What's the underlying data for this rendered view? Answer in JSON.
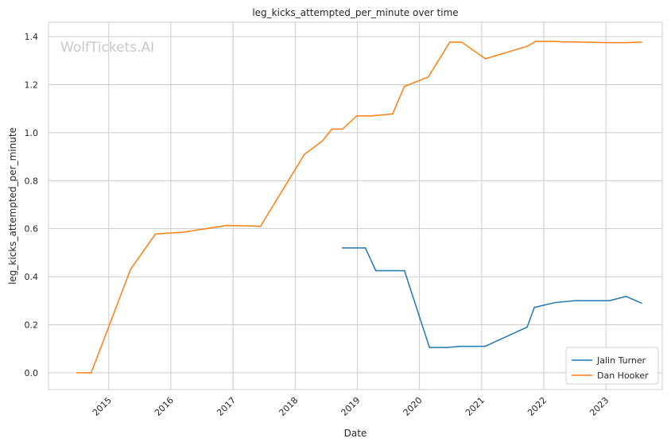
{
  "chart_data": {
    "type": "line",
    "title": "leg_kicks_attempted_per_minute over time",
    "xlabel": "Date",
    "ylabel": "leg_kicks_attempted_per_minute",
    "watermark": "WolfTickets.AI",
    "x_type": "date",
    "xlim": [
      "2014-01-12",
      "2023-11-28"
    ],
    "ylim": [
      -0.07,
      1.46
    ],
    "yticks": [
      0.0,
      0.2,
      0.4,
      0.6,
      0.8,
      1.0,
      1.2,
      1.4
    ],
    "ytick_labels": [
      "0.0",
      "0.2",
      "0.4",
      "0.6",
      "0.8",
      "1.0",
      "1.2",
      "1.4"
    ],
    "xticks": [
      "2015-01-01",
      "2016-01-01",
      "2017-01-01",
      "2018-01-01",
      "2019-01-01",
      "2020-01-01",
      "2021-01-01",
      "2022-01-01",
      "2023-01-01"
    ],
    "xtick_labels": [
      "2015",
      "2016",
      "2017",
      "2018",
      "2019",
      "2020",
      "2021",
      "2022",
      "2023"
    ],
    "grid": true,
    "legend_position": "bottom-right",
    "series": [
      {
        "name": "Jalin Turner",
        "color": "#1f77b4",
        "x": [
          "2018-10-06",
          "2019-02-17",
          "2019-04-20",
          "2019-10-05",
          "2020-02-29",
          "2020-06-06",
          "2020-08-29",
          "2021-01-20",
          "2021-09-25",
          "2021-11-06",
          "2022-03-05",
          "2022-07-01",
          "2023-01-21",
          "2023-04-29",
          "2023-07-29"
        ],
        "y": [
          0.52,
          0.52,
          0.425,
          0.425,
          0.105,
          0.105,
          0.11,
          0.11,
          0.19,
          0.272,
          0.292,
          0.3,
          0.3,
          0.318,
          0.29
        ]
      },
      {
        "name": "Dan Hooker",
        "color": "#ff7f0e",
        "x": [
          "2014-06-28",
          "2014-09-20",
          "2015-05-10",
          "2015-10-03",
          "2016-03-20",
          "2016-11-27",
          "2017-06-11",
          "2018-02-24",
          "2018-06-09",
          "2018-08-04",
          "2018-10-06",
          "2018-12-29",
          "2019-03-23",
          "2019-07-27",
          "2019-10-05",
          "2020-02-22",
          "2020-06-27",
          "2020-09-05",
          "2021-01-23",
          "2021-09-25",
          "2021-11-13",
          "2022-03-05",
          "2022-04-30",
          "2022-07-02",
          "2023-01-21",
          "2023-04-29",
          "2023-07-29"
        ],
        "y": [
          0.0,
          0.0,
          0.432,
          0.578,
          0.586,
          0.614,
          0.61,
          0.91,
          0.965,
          1.015,
          1.015,
          1.07,
          1.07,
          1.078,
          1.193,
          1.232,
          1.377,
          1.377,
          1.308,
          1.36,
          1.38,
          1.38,
          1.378,
          1.378,
          1.375,
          1.375,
          1.377
        ]
      }
    ]
  }
}
